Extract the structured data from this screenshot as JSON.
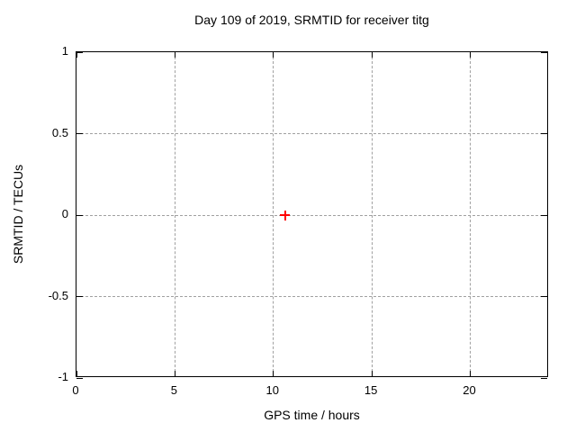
{
  "chart_data": {
    "type": "scatter",
    "title": "Day 109 of 2019, SRMTID for receiver titg",
    "xlabel": "GPS time / hours",
    "ylabel": "SRMTID / TECUs",
    "xlim": [
      0,
      24
    ],
    "ylim": [
      -1,
      1
    ],
    "x_ticks": [
      0,
      5,
      10,
      15,
      20
    ],
    "x_tick_labels": [
      "0",
      "5",
      "10",
      "15",
      "20"
    ],
    "y_ticks": [
      -1,
      -0.5,
      0,
      0.5,
      1
    ],
    "y_tick_labels": [
      "-1",
      "-0.5",
      "0",
      "0.5",
      "1"
    ],
    "grid": true,
    "legend": "none",
    "series": [
      {
        "name": "SRMTID",
        "marker": "plus",
        "color": "#ff0000",
        "points": [
          {
            "x": 10.6,
            "y": 0
          }
        ]
      }
    ]
  },
  "colors": {
    "background": "#ffffff",
    "border": "#000000",
    "grid": "#a0a0a0",
    "text": "#000000",
    "point": "#ff0000"
  }
}
